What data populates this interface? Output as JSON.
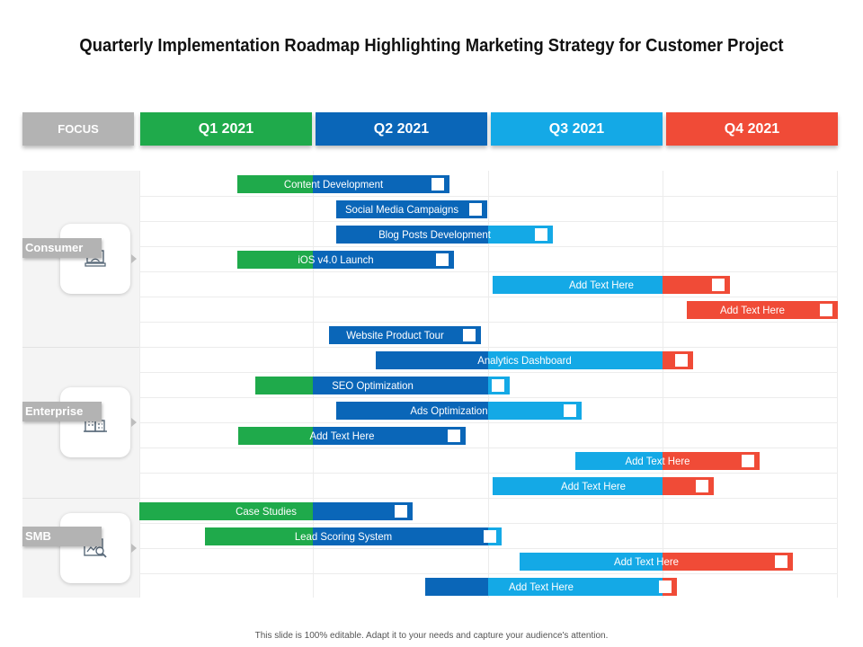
{
  "title": "Quarterly Implementation Roadmap Highlighting Marketing Strategy for Customer Project",
  "footer": "This slide is 100% editable. Adapt it to your needs and capture your audience's attention.",
  "colors": {
    "q1": "#1faa4b",
    "q2": "#0a66b8",
    "q3": "#14a9e6",
    "q4": "#f04b37",
    "focus": "#b3b3b3"
  },
  "header": {
    "focus": "FOCUS",
    "quarters": [
      "Q1 2021",
      "Q2 2021",
      "Q3 2021",
      "Q4 2021"
    ]
  },
  "segments": [
    {
      "label": "Consumer",
      "icon": "laptop-user-icon"
    },
    {
      "label": "Enterprise",
      "icon": "buildings-icon"
    },
    {
      "label": "SMB",
      "icon": "chart-magnifier-icon"
    }
  ],
  "tasks": [
    {
      "label": "Content Development"
    },
    {
      "label": "Social Media Campaigns"
    },
    {
      "label": "Blog Posts Development"
    },
    {
      "label": "iOS v4.0 Launch"
    },
    {
      "label": "Add Text Here"
    },
    {
      "label": "Add Text Here"
    },
    {
      "label": "Website Product Tour"
    },
    {
      "label": "Analytics Dashboard"
    },
    {
      "label": "SEO Optimization"
    },
    {
      "label": "Ads Optimization"
    },
    {
      "label": "Add Text Here"
    },
    {
      "label": "Add Text Here"
    },
    {
      "label": "Add Text Here"
    },
    {
      "label": "Case Studies"
    },
    {
      "label": "Lead Scoring System"
    },
    {
      "label": "Add Text Here"
    },
    {
      "label": "Add Text Here"
    }
  ]
}
